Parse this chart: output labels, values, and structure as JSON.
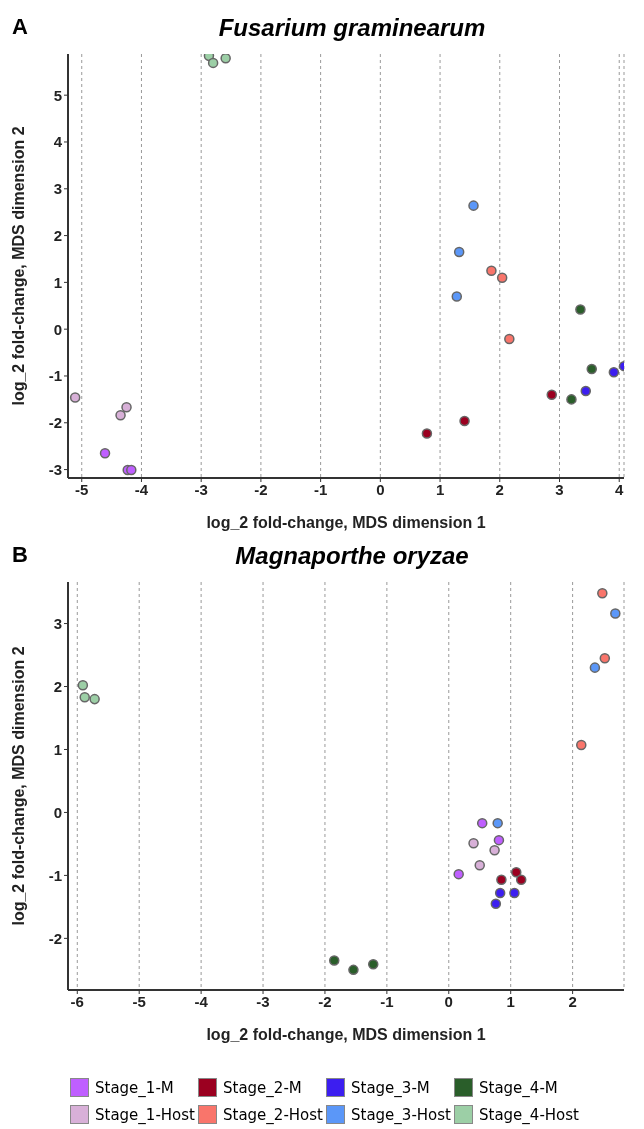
{
  "chart_data": [
    {
      "type": "scatter",
      "title": "Fusarium graminearum",
      "annotations": [
        "A"
      ],
      "xlabel": "log_2 fold-change, MDS dimension 1",
      "ylabel": "log_2 fold-change, MDS dimension 2",
      "xlim": [
        -5.23,
        4.08
      ],
      "ylim": [
        -3.18,
        5.88
      ],
      "xticks": [
        -5,
        -4,
        -3,
        -2,
        -1,
        0,
        1,
        2,
        3,
        4
      ],
      "yticks": [
        -3,
        -2,
        -1,
        0,
        1,
        2,
        3,
        4,
        5
      ],
      "grid": "x",
      "marker": "circle",
      "legend": false,
      "series": [
        {
          "color": "#bf5fff",
          "x": [
            -4.61,
            -4.23,
            -4.17
          ],
          "values": [
            -2.65,
            -3.01,
            -3.01
          ]
        },
        {
          "color": "#d8b0d8",
          "x": [
            -5.11,
            -4.25,
            -4.35
          ],
          "values": [
            -1.46,
            -1.67,
            -1.84
          ]
        },
        {
          "color": "#9b0020",
          "x": [
            0.78,
            1.41,
            2.87
          ],
          "values": [
            -2.23,
            -1.96,
            -1.4
          ]
        },
        {
          "color": "#f9756b",
          "x": [
            1.86,
            2.04,
            2.16
          ],
          "values": [
            1.25,
            1.1,
            -0.21
          ]
        },
        {
          "color": "#3c1ef0",
          "x": [
            3.44,
            3.91,
            4.08
          ],
          "values": [
            -1.32,
            -0.92,
            -0.79
          ]
        },
        {
          "color": "#5b97f8",
          "x": [
            1.56,
            1.32,
            1.28
          ],
          "values": [
            2.64,
            1.65,
            0.7
          ]
        },
        {
          "color": "#2a5e2a",
          "x": [
            3.35,
            3.54,
            3.2
          ],
          "values": [
            0.42,
            -0.85,
            -1.5
          ]
        },
        {
          "color": "#9ccfa6",
          "x": [
            -2.87,
            -2.8,
            -2.59
          ],
          "values": [
            5.84,
            5.69,
            5.79
          ]
        }
      ]
    },
    {
      "type": "scatter",
      "title": "Magnaporthe oryzae",
      "annotations": [
        "B"
      ],
      "xlabel": "log_2 fold-change, MDS dimension 1",
      "ylabel": "log_2 fold-change, MDS dimension 2",
      "xlim": [
        -6.15,
        2.83
      ],
      "ylim": [
        -2.82,
        3.66
      ],
      "xticks": [
        -6,
        -5,
        -4,
        -3,
        -2,
        -1,
        0,
        1,
        2
      ],
      "yticks": [
        -2,
        -1,
        0,
        1,
        2,
        3
      ],
      "grid": "x",
      "marker": "circle",
      "legend": "bottom",
      "series": [
        {
          "name": "Stage_1-M",
          "color": "#bf5fff",
          "x": [
            0.54,
            0.81,
            0.16
          ],
          "values": [
            -0.17,
            -0.44,
            -0.98
          ]
        },
        {
          "name": "Stage_1-Host",
          "color": "#d8b0d8",
          "x": [
            0.4,
            0.74,
            0.5
          ],
          "values": [
            -0.49,
            -0.6,
            -0.84
          ]
        },
        {
          "name": "Stage_2-M",
          "color": "#9b0020",
          "x": [
            0.85,
            1.09,
            1.17
          ],
          "values": [
            -1.07,
            -0.95,
            -1.07
          ]
        },
        {
          "name": "Stage_2-Host",
          "color": "#f9756b",
          "x": [
            2.48,
            2.52,
            2.14
          ],
          "values": [
            3.48,
            2.45,
            1.07
          ]
        },
        {
          "name": "Stage_3-M",
          "color": "#3c1ef0",
          "x": [
            0.83,
            1.06,
            0.76
          ],
          "values": [
            -1.28,
            -1.28,
            -1.45
          ]
        },
        {
          "name": "Stage_3-Host",
          "color": "#5b97f8",
          "x": [
            0.79,
            2.69,
            2.36
          ],
          "values": [
            -0.17,
            3.16,
            2.3
          ]
        },
        {
          "name": "Stage_4-M",
          "color": "#2a5e2a",
          "x": [
            -1.85,
            -1.54,
            -1.22
          ],
          "values": [
            -2.35,
            -2.5,
            -2.41
          ]
        },
        {
          "name": "Stage_4-Host",
          "color": "#9ccfa6",
          "x": [
            -5.91,
            -5.88,
            -5.72
          ],
          "values": [
            2.02,
            1.83,
            1.8
          ]
        }
      ]
    }
  ]
}
